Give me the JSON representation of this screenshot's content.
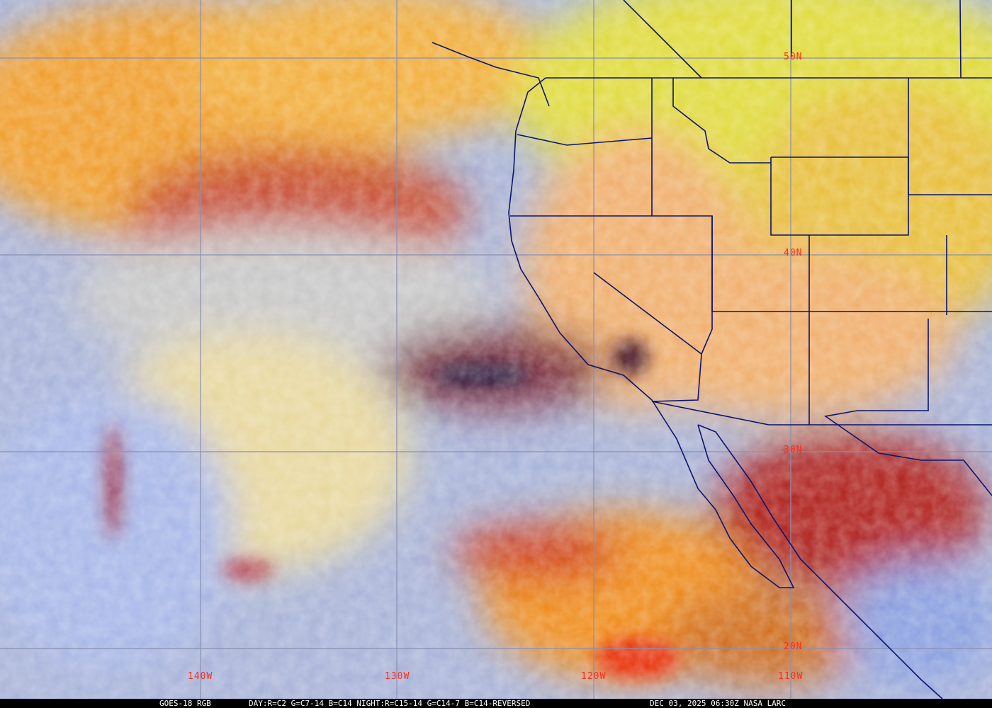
{
  "footer": {
    "satellite": "GOES-18 RGB",
    "recipe": "DAY:R=C2 G=C7-14 B=C14 NIGHT:R=C15-14 G=C14-7 B=C14-REVERSED",
    "timestamp": "DEC 03, 2025 06:30Z NASA LARC"
  },
  "longitude_labels": [
    "140W",
    "130W",
    "120W",
    "110W"
  ],
  "latitude_labels": [
    "50N",
    "40N",
    "30N",
    "20N"
  ],
  "colors": {
    "grid": "#8a8fb0",
    "labels": "#ff2a1a",
    "borders": "#0a1470",
    "clear_ocean": "#a9b4d8",
    "high_cloud": "#e8a020",
    "land": "#e8c060"
  }
}
